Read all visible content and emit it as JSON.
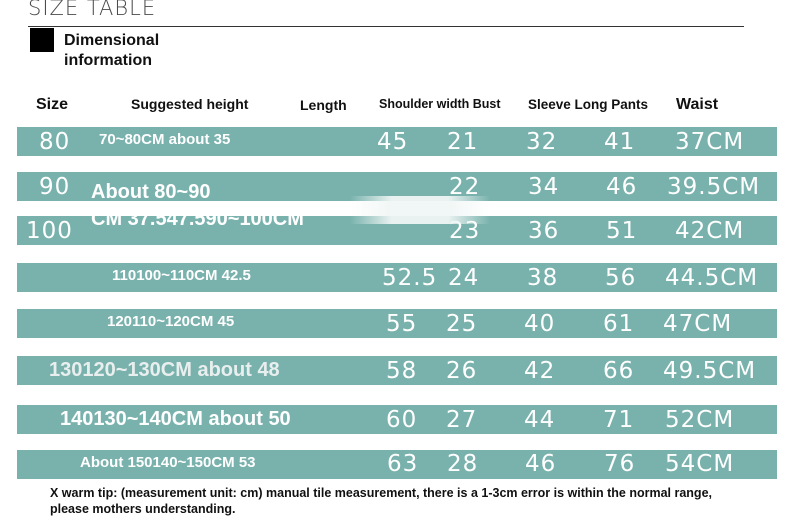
{
  "title": "SIZE TABLE",
  "section": {
    "line1": "Dimensional",
    "line2": "information"
  },
  "headers": {
    "size": "Size",
    "height": "Suggested height",
    "length": "Length",
    "shoulder_bust": "Shoulder width Bust",
    "sleeve_pants": "Sleeve Long Pants",
    "waist": "Waist"
  },
  "rows": [
    {
      "size": "80",
      "height": "70~80CM about 35",
      "length": "45",
      "shoulder": "21",
      "bust": "32",
      "sleeve": "41",
      "waist": "37CM"
    },
    {
      "size": "90",
      "height": "About 80~90",
      "length": "",
      "shoulder": "22",
      "bust": "34",
      "sleeve": "46",
      "waist": "39.5CM"
    },
    {
      "size": "100",
      "height": "CM 37.547.590~100CM",
      "length": "",
      "shoulder": "23",
      "bust": "36",
      "sleeve": "51",
      "waist": "42CM"
    },
    {
      "size": "",
      "height": "110100~110CM 42.5",
      "length": "52.5",
      "shoulder": "24",
      "bust": "38",
      "sleeve": "56",
      "waist": "44.5CM"
    },
    {
      "size": "",
      "height": "120110~120CM 45",
      "length": "55",
      "shoulder": "25",
      "bust": "40",
      "sleeve": "61",
      "waist": "47CM"
    },
    {
      "size": "",
      "height": "130120~130CM about 48",
      "length": "58",
      "shoulder": "26",
      "bust": "42",
      "sleeve": "66",
      "waist": "49.5CM"
    },
    {
      "size": "",
      "height": "140130~140CM about 50",
      "length": "60",
      "shoulder": "27",
      "bust": "44",
      "sleeve": "71",
      "waist": "52CM"
    },
    {
      "size": "",
      "height": "About 150140~150CM 53",
      "length": "63",
      "shoulder": "28",
      "bust": "46",
      "sleeve": "76",
      "waist": "54CM"
    }
  ],
  "note": "X warm tip: (measurement unit: cm) manual tile measurement, there is a 1-3cm error is within the normal range, please mothers understanding.",
  "colors": {
    "row_bg": "#79b2ad",
    "text_on_row": "#ffffff"
  }
}
